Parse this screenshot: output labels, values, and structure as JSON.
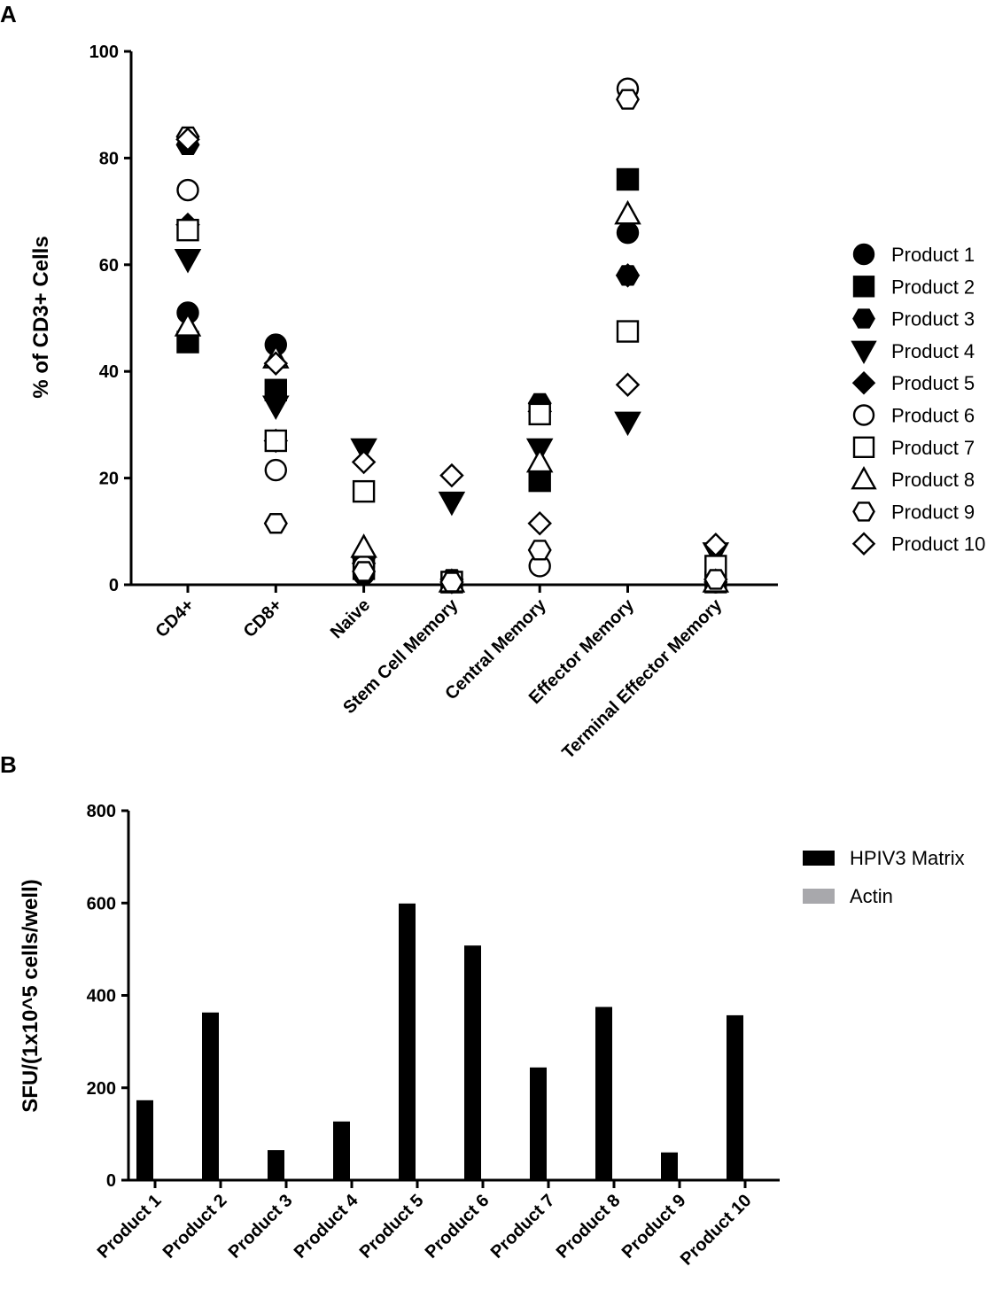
{
  "chart_data": [
    {
      "panel": "A",
      "type": "scatter",
      "ylabel": "% of CD3+ Cells",
      "xlabel": "",
      "ylim": [
        0,
        100
      ],
      "yticks": [
        0,
        20,
        40,
        60,
        80,
        100
      ],
      "categories": [
        "CD4+",
        "CD8+",
        "Naive",
        "Stem Cell Memory",
        "Central Memory",
        "Effector Memory",
        "Terminal Effector Memory"
      ],
      "legend_position": "right",
      "series": [
        {
          "name": "Product 1",
          "marker": "circle",
          "filled": true,
          "values": [
            51,
            45,
            2,
            0.5,
            33,
            66,
            0.5
          ]
        },
        {
          "name": "Product 2",
          "marker": "square",
          "filled": true,
          "values": [
            45.5,
            36.5,
            3,
            0.5,
            19.5,
            76,
            0.5
          ]
        },
        {
          "name": "Product 3",
          "marker": "hexagon",
          "filled": true,
          "values": [
            82.5,
            11.5,
            5,
            1,
            34,
            58,
            0.5
          ]
        },
        {
          "name": "Product 4",
          "marker": "triangle-down",
          "filled": true,
          "values": [
            61,
            33.5,
            25.5,
            15.5,
            25.5,
            30.5,
            6
          ]
        },
        {
          "name": "Product 5",
          "marker": "diamond",
          "filled": true,
          "values": [
            67.5,
            27,
            4,
            0.5,
            32.5,
            58,
            1
          ]
        },
        {
          "name": "Product 6",
          "marker": "circle",
          "filled": false,
          "values": [
            74,
            21.5,
            3.5,
            0.5,
            3.5,
            93,
            0.5
          ]
        },
        {
          "name": "Product 7",
          "marker": "square",
          "filled": false,
          "values": [
            66.5,
            27,
            17.5,
            0.5,
            32,
            47.5,
            3.5
          ]
        },
        {
          "name": "Product 8",
          "marker": "triangle-up",
          "filled": false,
          "values": [
            48.5,
            42.5,
            7,
            0.5,
            23,
            69.5,
            0.5
          ]
        },
        {
          "name": "Product 9",
          "marker": "hexagon",
          "filled": false,
          "values": [
            84,
            11.5,
            2.5,
            0.5,
            6.5,
            91,
            1
          ]
        },
        {
          "name": "Product 10",
          "marker": "diamond",
          "filled": false,
          "values": [
            83.5,
            41.5,
            23,
            20.5,
            11.5,
            37.5,
            7.5
          ]
        }
      ]
    },
    {
      "panel": "B",
      "type": "bar",
      "ylabel": "SFU/(1x10^5 cells/well)",
      "xlabel": "",
      "ylim": [
        0,
        800
      ],
      "yticks": [
        0,
        200,
        400,
        600,
        800
      ],
      "categories": [
        "Product 1",
        "Product 2",
        "Product 3",
        "Product 4",
        "Product 5",
        "Product 6",
        "Product 7",
        "Product 8",
        "Product 9",
        "Product 10"
      ],
      "legend_position": "top-right",
      "series": [
        {
          "name": "HPIV3 Matrix",
          "color": "#000000",
          "values": [
            173,
            363,
            65,
            127,
            599,
            508,
            244,
            375,
            60,
            357
          ]
        },
        {
          "name": "Actin",
          "color": "#a8a8ac",
          "values": [
            0,
            0,
            0,
            0,
            0,
            0,
            0,
            0,
            0,
            0
          ]
        }
      ]
    }
  ]
}
